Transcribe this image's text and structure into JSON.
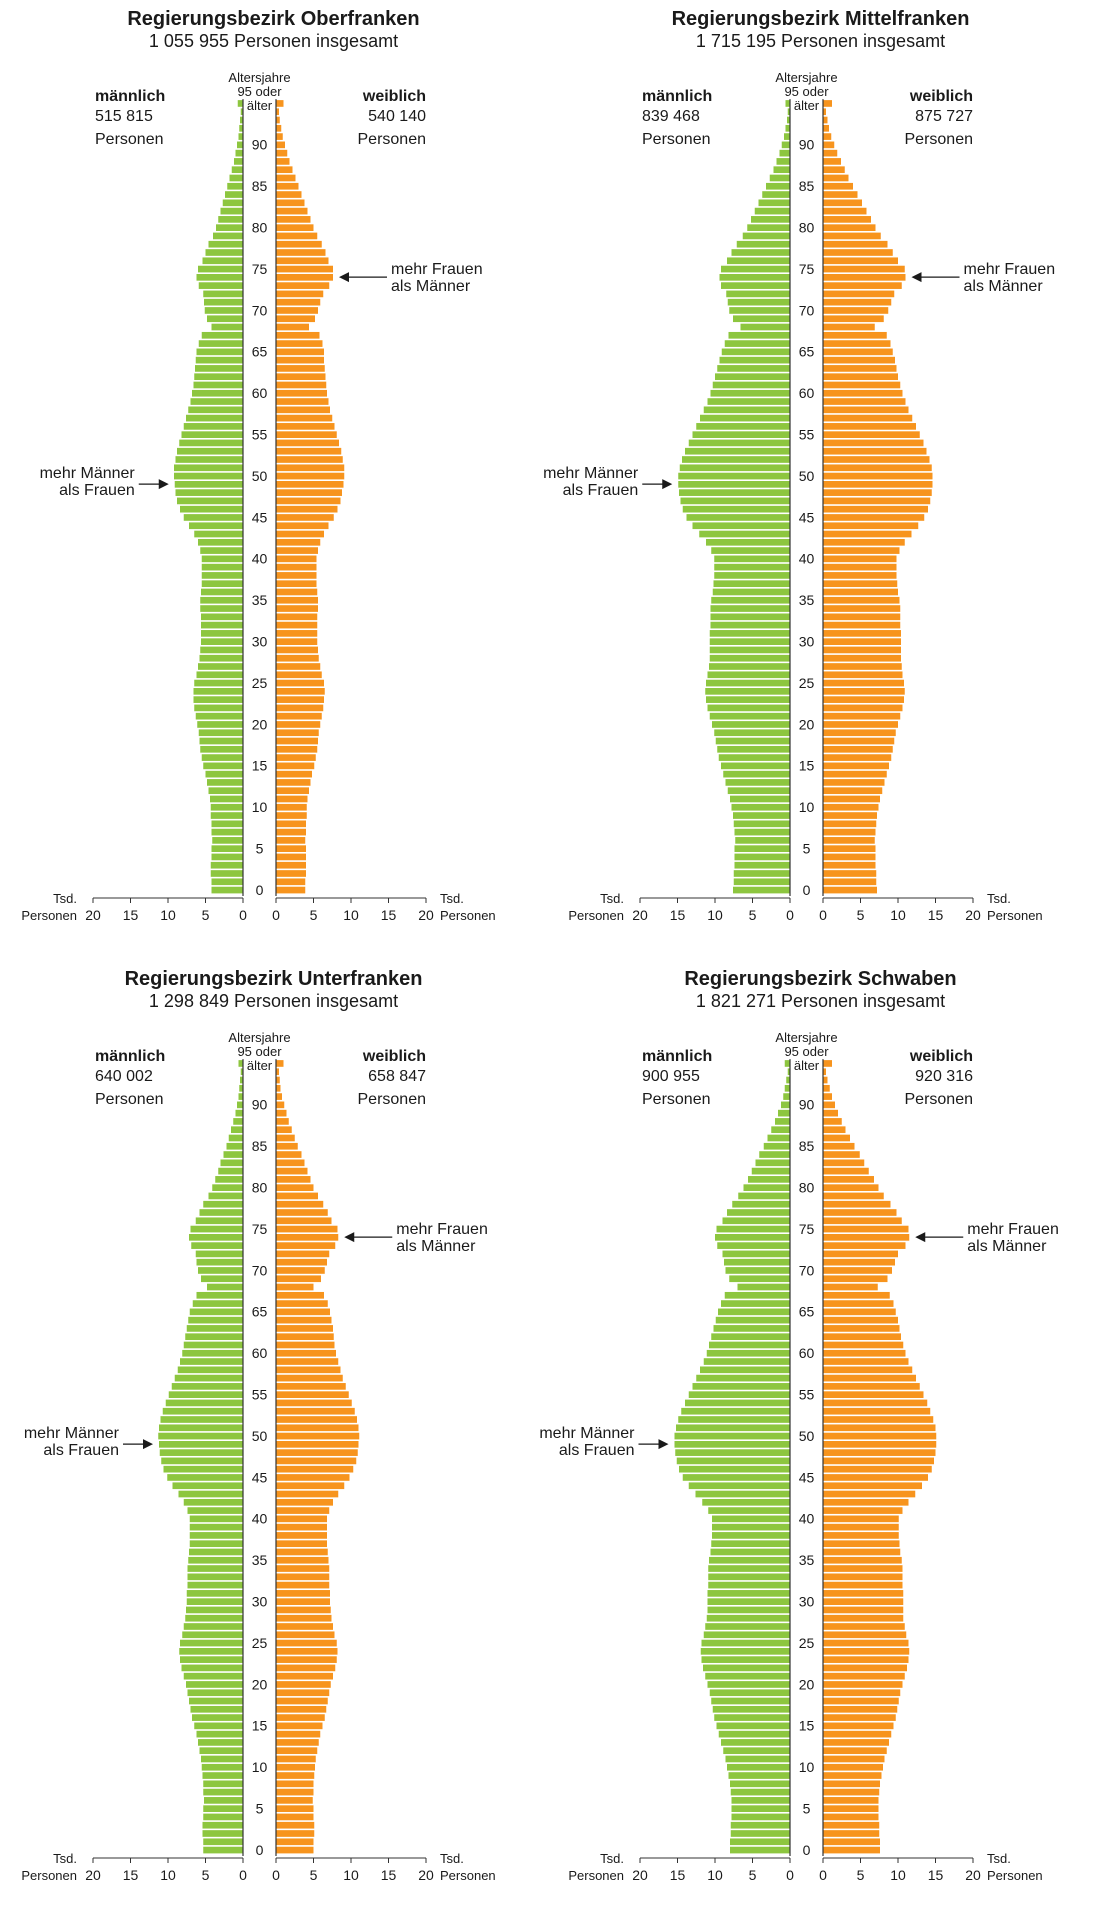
{
  "colors": {
    "male": "#8dc63f",
    "female": "#f7941d",
    "axis": "#333333"
  },
  "labels": {
    "age_axis": [
      "Altersjahre",
      "95 oder",
      "älter"
    ],
    "male_header": "männlich",
    "female_header": "weiblich",
    "persons": "Personen",
    "unit_top": "Tsd.",
    "unit_bottom": "Personen",
    "annot_women": [
      "mehr Frauen",
      "als Männer"
    ],
    "annot_men": [
      "mehr Männer",
      "als Frauen"
    ],
    "ticks_x": [
      20,
      15,
      10,
      5,
      0
    ],
    "ticks_age": [
      0,
      5,
      10,
      15,
      20,
      25,
      30,
      35,
      40,
      45,
      50,
      55,
      60,
      65,
      70,
      75,
      80,
      85,
      90
    ]
  },
  "chart_data": [
    {
      "type": "bar",
      "title": "Regierungsbezirk Oberfranken",
      "subtitle": "1 055 955 Personen insgesamt",
      "male_total": "515 815",
      "female_total": "540 140",
      "xlim": [
        0,
        20
      ],
      "male": [
        4.2,
        4.2,
        4.3,
        4.3,
        4.2,
        4.2,
        4.1,
        4.2,
        4.2,
        4.3,
        4.3,
        4.4,
        4.6,
        4.8,
        5.0,
        5.3,
        5.5,
        5.7,
        5.8,
        5.9,
        6.1,
        6.3,
        6.5,
        6.6,
        6.6,
        6.5,
        6.2,
        6.0,
        5.8,
        5.7,
        5.6,
        5.6,
        5.6,
        5.6,
        5.7,
        5.7,
        5.6,
        5.5,
        5.5,
        5.5,
        5.5,
        5.7,
        6.0,
        6.5,
        7.2,
        7.9,
        8.4,
        8.8,
        9.0,
        9.1,
        9.2,
        9.2,
        9.0,
        8.8,
        8.5,
        8.2,
        7.9,
        7.6,
        7.3,
        7.0,
        6.8,
        6.6,
        6.5,
        6.4,
        6.3,
        6.2,
        5.9,
        5.5,
        4.2,
        4.8,
        5.1,
        5.2,
        5.3,
        5.9,
        6.2,
        6.0,
        5.4,
        5.0,
        4.6,
        4.0,
        3.6,
        3.3,
        3.0,
        2.7,
        2.4,
        2.1,
        1.8,
        1.5,
        1.2,
        1.0,
        0.8,
        0.6,
        0.5,
        0.4,
        0.3,
        0.7
      ],
      "female": [
        3.9,
        3.9,
        4.0,
        4.0,
        4.0,
        4.0,
        3.9,
        4.0,
        4.0,
        4.1,
        4.1,
        4.2,
        4.4,
        4.6,
        4.8,
        5.1,
        5.3,
        5.5,
        5.6,
        5.7,
        5.9,
        6.1,
        6.3,
        6.4,
        6.5,
        6.4,
        6.1,
        5.9,
        5.7,
        5.6,
        5.5,
        5.5,
        5.5,
        5.5,
        5.6,
        5.6,
        5.5,
        5.4,
        5.4,
        5.4,
        5.4,
        5.6,
        5.9,
        6.4,
        7.0,
        7.7,
        8.2,
        8.6,
        8.8,
        9.0,
        9.1,
        9.1,
        8.9,
        8.7,
        8.4,
        8.1,
        7.8,
        7.5,
        7.2,
        7.0,
        6.8,
        6.7,
        6.6,
        6.5,
        6.4,
        6.4,
        6.2,
        5.8,
        4.4,
        5.2,
        5.6,
        5.9,
        6.3,
        7.1,
        7.6,
        7.6,
        7.0,
        6.6,
        6.1,
        5.5,
        5.0,
        4.6,
        4.2,
        3.8,
        3.4,
        3.0,
        2.6,
        2.2,
        1.8,
        1.5,
        1.2,
        0.9,
        0.7,
        0.5,
        0.4,
        1.0
      ]
    },
    {
      "type": "bar",
      "title": "Regierungsbezirk Mittelfranken",
      "subtitle": "1 715 195 Personen insgesamt",
      "male_total": "839 468",
      "female_total": "875 727",
      "xlim": [
        0,
        20
      ],
      "male": [
        7.6,
        7.5,
        7.5,
        7.4,
        7.4,
        7.4,
        7.3,
        7.4,
        7.5,
        7.6,
        7.8,
        8.0,
        8.3,
        8.6,
        8.9,
        9.2,
        9.5,
        9.7,
        9.9,
        10.1,
        10.4,
        10.7,
        11.0,
        11.2,
        11.3,
        11.2,
        11.0,
        10.8,
        10.7,
        10.7,
        10.7,
        10.7,
        10.6,
        10.6,
        10.6,
        10.5,
        10.3,
        10.2,
        10.1,
        10.1,
        10.1,
        10.5,
        11.2,
        12.1,
        13.0,
        13.8,
        14.3,
        14.6,
        14.8,
        14.9,
        14.9,
        14.7,
        14.4,
        14.0,
        13.5,
        13.0,
        12.5,
        12.0,
        11.5,
        11.0,
        10.6,
        10.3,
        10.0,
        9.7,
        9.4,
        9.1,
        8.7,
        8.2,
        6.6,
        7.6,
        8.1,
        8.3,
        8.5,
        9.2,
        9.4,
        9.2,
        8.4,
        7.8,
        7.1,
        6.3,
        5.7,
        5.2,
        4.7,
        4.2,
        3.7,
        3.2,
        2.7,
        2.2,
        1.8,
        1.4,
        1.1,
        0.8,
        0.6,
        0.4,
        0.3,
        0.6
      ],
      "female": [
        7.2,
        7.1,
        7.1,
        7.0,
        7.0,
        7.0,
        6.9,
        7.0,
        7.1,
        7.2,
        7.4,
        7.6,
        7.9,
        8.2,
        8.5,
        8.8,
        9.1,
        9.3,
        9.5,
        9.7,
        10.0,
        10.3,
        10.6,
        10.8,
        10.9,
        10.8,
        10.6,
        10.5,
        10.4,
        10.4,
        10.4,
        10.4,
        10.3,
        10.3,
        10.3,
        10.2,
        10.0,
        9.9,
        9.8,
        9.8,
        9.8,
        10.2,
        10.9,
        11.8,
        12.7,
        13.5,
        14.0,
        14.3,
        14.5,
        14.6,
        14.6,
        14.5,
        14.2,
        13.8,
        13.4,
        12.9,
        12.4,
        11.9,
        11.4,
        11.0,
        10.6,
        10.3,
        10.0,
        9.8,
        9.6,
        9.3,
        9.0,
        8.5,
        6.9,
        8.1,
        8.7,
        9.1,
        9.5,
        10.5,
        11.0,
        10.9,
        10.0,
        9.3,
        8.6,
        7.7,
        7.0,
        6.4,
        5.8,
        5.2,
        4.6,
        4.0,
        3.4,
        2.9,
        2.4,
        1.9,
        1.5,
        1.1,
        0.8,
        0.6,
        0.4,
        1.2
      ]
    },
    {
      "type": "bar",
      "title": "Regierungsbezirk Unterfranken",
      "subtitle": "1 298 849 Personen insgesamt",
      "male_total": "640 002",
      "female_total": "658 847",
      "xlim": [
        0,
        20
      ],
      "male": [
        5.3,
        5.3,
        5.4,
        5.4,
        5.3,
        5.3,
        5.2,
        5.3,
        5.3,
        5.4,
        5.5,
        5.6,
        5.8,
        6.0,
        6.2,
        6.5,
        6.8,
        7.0,
        7.2,
        7.4,
        7.6,
        7.9,
        8.2,
        8.4,
        8.5,
        8.4,
        8.1,
        7.9,
        7.7,
        7.6,
        7.5,
        7.5,
        7.4,
        7.4,
        7.4,
        7.3,
        7.2,
        7.1,
        7.1,
        7.1,
        7.1,
        7.4,
        7.9,
        8.6,
        9.4,
        10.1,
        10.6,
        10.9,
        11.1,
        11.2,
        11.3,
        11.2,
        11.0,
        10.7,
        10.3,
        9.9,
        9.5,
        9.1,
        8.7,
        8.4,
        8.1,
        7.9,
        7.7,
        7.5,
        7.3,
        7.1,
        6.7,
        6.2,
        4.8,
        5.6,
        6.0,
        6.2,
        6.3,
        6.9,
        7.2,
        7.0,
        6.3,
        5.8,
        5.3,
        4.6,
        4.1,
        3.7,
        3.3,
        3.0,
        2.6,
        2.2,
        1.9,
        1.6,
        1.3,
        1.0,
        0.8,
        0.6,
        0.5,
        0.4,
        0.3,
        0.6
      ],
      "female": [
        5.0,
        5.0,
        5.1,
        5.1,
        5.0,
        5.0,
        4.9,
        5.0,
        5.0,
        5.1,
        5.2,
        5.3,
        5.5,
        5.7,
        5.9,
        6.2,
        6.5,
        6.7,
        6.9,
        7.1,
        7.3,
        7.6,
        7.9,
        8.1,
        8.2,
        8.1,
        7.8,
        7.6,
        7.4,
        7.3,
        7.2,
        7.2,
        7.1,
        7.1,
        7.1,
        7.0,
        6.9,
        6.8,
        6.8,
        6.8,
        6.8,
        7.1,
        7.6,
        8.3,
        9.1,
        9.8,
        10.3,
        10.7,
        10.9,
        11.0,
        11.1,
        11.0,
        10.8,
        10.5,
        10.1,
        9.7,
        9.3,
        8.9,
        8.6,
        8.3,
        8.0,
        7.8,
        7.7,
        7.6,
        7.4,
        7.2,
        6.9,
        6.4,
        5.0,
        6.0,
        6.5,
        6.8,
        7.1,
        7.9,
        8.3,
        8.2,
        7.4,
        6.9,
        6.3,
        5.6,
        5.0,
        4.6,
        4.2,
        3.8,
        3.4,
        2.9,
        2.5,
        2.1,
        1.7,
        1.4,
        1.1,
        0.8,
        0.6,
        0.5,
        0.4,
        1.0
      ]
    },
    {
      "type": "bar",
      "title": "Regierungsbezirk Schwaben",
      "subtitle": "1 821 271 Personen insgesamt",
      "male_total": "900 955",
      "female_total": "920 316",
      "xlim": [
        0,
        20
      ],
      "male": [
        8.0,
        8.0,
        7.9,
        7.9,
        7.8,
        7.8,
        7.8,
        7.9,
        8.0,
        8.2,
        8.4,
        8.6,
        8.9,
        9.2,
        9.5,
        9.8,
        10.1,
        10.3,
        10.5,
        10.7,
        11.0,
        11.3,
        11.6,
        11.8,
        11.9,
        11.8,
        11.5,
        11.3,
        11.1,
        11.0,
        11.0,
        11.0,
        10.9,
        10.9,
        10.9,
        10.8,
        10.6,
        10.5,
        10.4,
        10.4,
        10.4,
        10.9,
        11.7,
        12.6,
        13.5,
        14.3,
        14.8,
        15.1,
        15.3,
        15.4,
        15.4,
        15.2,
        14.9,
        14.5,
        14.0,
        13.5,
        13.0,
        12.5,
        12.0,
        11.5,
        11.1,
        10.8,
        10.5,
        10.2,
        9.9,
        9.6,
        9.2,
        8.7,
        7.0,
        8.1,
        8.6,
        8.8,
        9.0,
        9.7,
        10.0,
        9.8,
        9.0,
        8.4,
        7.7,
        6.9,
        6.2,
        5.6,
        5.1,
        4.6,
        4.1,
        3.5,
        3.0,
        2.5,
        2.0,
        1.6,
        1.2,
        0.9,
        0.7,
        0.5,
        0.3,
        0.7
      ],
      "female": [
        7.6,
        7.6,
        7.5,
        7.5,
        7.4,
        7.4,
        7.4,
        7.5,
        7.6,
        7.8,
        8.0,
        8.2,
        8.5,
        8.8,
        9.1,
        9.4,
        9.7,
        9.9,
        10.1,
        10.3,
        10.6,
        10.9,
        11.2,
        11.4,
        11.5,
        11.4,
        11.1,
        10.9,
        10.7,
        10.7,
        10.7,
        10.7,
        10.6,
        10.6,
        10.6,
        10.5,
        10.3,
        10.2,
        10.1,
        10.1,
        10.1,
        10.6,
        11.4,
        12.3,
        13.2,
        14.0,
        14.5,
        14.8,
        15.0,
        15.1,
        15.1,
        15.0,
        14.7,
        14.3,
        13.9,
        13.4,
        12.9,
        12.4,
        11.9,
        11.4,
        11.0,
        10.7,
        10.4,
        10.2,
        10.0,
        9.7,
        9.4,
        8.9,
        7.3,
        8.6,
        9.2,
        9.6,
        10.0,
        11.0,
        11.5,
        11.4,
        10.5,
        9.8,
        9.0,
        8.1,
        7.4,
        6.8,
        6.1,
        5.5,
        4.9,
        4.2,
        3.6,
        3.0,
        2.5,
        2.0,
        1.6,
        1.2,
        0.9,
        0.6,
        0.4,
        1.2
      ]
    }
  ]
}
